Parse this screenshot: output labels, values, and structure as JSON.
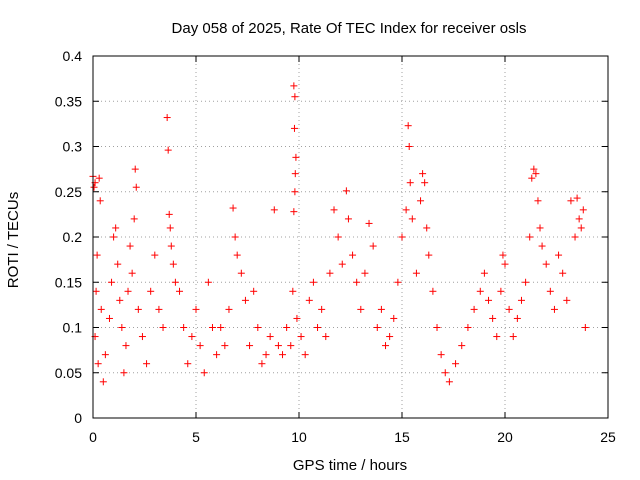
{
  "chart_data": {
    "type": "scatter",
    "title": "Day 058 of 2025, Rate Of TEC Index for receiver osls",
    "xlabel": "GPS time / hours",
    "ylabel": "ROTI / TECUs",
    "xlim": [
      0,
      25
    ],
    "ylim": [
      0,
      0.4
    ],
    "x_ticks": [
      0,
      5,
      10,
      15,
      20,
      25
    ],
    "x_tick_labels": [
      "0",
      "5",
      "10",
      "15",
      "20",
      "25"
    ],
    "y_ticks": [
      0,
      0.05,
      0.1,
      0.15,
      0.2,
      0.25,
      0.3,
      0.35,
      0.4
    ],
    "y_tick_labels": [
      "0",
      "0.05",
      "0.1",
      "0.15",
      "0.2",
      "0.25",
      "0.3",
      "0.35",
      "0.4"
    ],
    "grid": true,
    "marker": "+",
    "color": "#ff0000",
    "series": [
      {
        "name": "ROTI",
        "points": [
          [
            0.0,
            0.267
          ],
          [
            0.05,
            0.255
          ],
          [
            0.1,
            0.26
          ],
          [
            0.3,
            0.265
          ],
          [
            0.35,
            0.24
          ],
          [
            0.2,
            0.18
          ],
          [
            0.15,
            0.14
          ],
          [
            0.4,
            0.12
          ],
          [
            0.1,
            0.09
          ],
          [
            0.25,
            0.06
          ],
          [
            0.5,
            0.04
          ],
          [
            0.6,
            0.07
          ],
          [
            0.8,
            0.11
          ],
          [
            0.9,
            0.15
          ],
          [
            1.0,
            0.2
          ],
          [
            1.1,
            0.21
          ],
          [
            1.2,
            0.17
          ],
          [
            1.3,
            0.13
          ],
          [
            1.4,
            0.1
          ],
          [
            1.5,
            0.05
          ],
          [
            1.6,
            0.08
          ],
          [
            1.7,
            0.14
          ],
          [
            1.8,
            0.19
          ],
          [
            1.9,
            0.16
          ],
          [
            2.05,
            0.275
          ],
          [
            2.1,
            0.255
          ],
          [
            2.0,
            0.22
          ],
          [
            2.2,
            0.12
          ],
          [
            2.4,
            0.09
          ],
          [
            2.6,
            0.06
          ],
          [
            2.8,
            0.14
          ],
          [
            3.0,
            0.18
          ],
          [
            3.2,
            0.12
          ],
          [
            3.4,
            0.1
          ],
          [
            3.6,
            0.332
          ],
          [
            3.65,
            0.296
          ],
          [
            3.7,
            0.225
          ],
          [
            3.75,
            0.21
          ],
          [
            3.8,
            0.19
          ],
          [
            3.9,
            0.17
          ],
          [
            4.0,
            0.15
          ],
          [
            4.2,
            0.14
          ],
          [
            4.4,
            0.1
          ],
          [
            4.6,
            0.06
          ],
          [
            4.8,
            0.09
          ],
          [
            5.0,
            0.12
          ],
          [
            5.2,
            0.08
          ],
          [
            5.4,
            0.05
          ],
          [
            5.6,
            0.15
          ],
          [
            5.8,
            0.1
          ],
          [
            6.0,
            0.07
          ],
          [
            6.2,
            0.1
          ],
          [
            6.4,
            0.08
          ],
          [
            6.6,
            0.12
          ],
          [
            6.8,
            0.232
          ],
          [
            6.9,
            0.2
          ],
          [
            7.0,
            0.18
          ],
          [
            7.2,
            0.16
          ],
          [
            7.4,
            0.13
          ],
          [
            7.6,
            0.08
          ],
          [
            7.8,
            0.14
          ],
          [
            8.0,
            0.1
          ],
          [
            8.2,
            0.06
          ],
          [
            8.4,
            0.07
          ],
          [
            8.6,
            0.09
          ],
          [
            8.8,
            0.23
          ],
          [
            9.0,
            0.08
          ],
          [
            9.2,
            0.07
          ],
          [
            9.4,
            0.1
          ],
          [
            9.6,
            0.08
          ],
          [
            9.75,
            0.367
          ],
          [
            9.8,
            0.355
          ],
          [
            9.78,
            0.32
          ],
          [
            9.85,
            0.288
          ],
          [
            9.82,
            0.27
          ],
          [
            9.8,
            0.25
          ],
          [
            9.75,
            0.228
          ],
          [
            9.7,
            0.14
          ],
          [
            9.9,
            0.11
          ],
          [
            10.1,
            0.09
          ],
          [
            10.3,
            0.07
          ],
          [
            10.5,
            0.13
          ],
          [
            10.7,
            0.15
          ],
          [
            10.9,
            0.1
          ],
          [
            11.1,
            0.12
          ],
          [
            11.3,
            0.09
          ],
          [
            11.5,
            0.16
          ],
          [
            11.7,
            0.23
          ],
          [
            11.9,
            0.2
          ],
          [
            12.1,
            0.17
          ],
          [
            12.3,
            0.251
          ],
          [
            12.4,
            0.22
          ],
          [
            12.6,
            0.18
          ],
          [
            12.8,
            0.15
          ],
          [
            13.0,
            0.12
          ],
          [
            13.2,
            0.16
          ],
          [
            13.4,
            0.215
          ],
          [
            13.6,
            0.19
          ],
          [
            13.8,
            0.1
          ],
          [
            14.0,
            0.12
          ],
          [
            14.2,
            0.08
          ],
          [
            14.4,
            0.09
          ],
          [
            14.6,
            0.11
          ],
          [
            14.8,
            0.15
          ],
          [
            15.0,
            0.2
          ],
          [
            15.2,
            0.23
          ],
          [
            15.3,
            0.323
          ],
          [
            15.35,
            0.3
          ],
          [
            15.4,
            0.26
          ],
          [
            15.5,
            0.22
          ],
          [
            15.7,
            0.16
          ],
          [
            15.9,
            0.24
          ],
          [
            16.0,
            0.27
          ],
          [
            16.1,
            0.26
          ],
          [
            16.2,
            0.21
          ],
          [
            16.3,
            0.18
          ],
          [
            16.5,
            0.14
          ],
          [
            16.7,
            0.1
          ],
          [
            16.9,
            0.07
          ],
          [
            17.1,
            0.05
          ],
          [
            17.3,
            0.04
          ],
          [
            17.6,
            0.06
          ],
          [
            17.9,
            0.08
          ],
          [
            18.2,
            0.1
          ],
          [
            18.5,
            0.12
          ],
          [
            18.8,
            0.14
          ],
          [
            19.0,
            0.16
          ],
          [
            19.2,
            0.13
          ],
          [
            19.4,
            0.11
          ],
          [
            19.6,
            0.09
          ],
          [
            19.8,
            0.14
          ],
          [
            19.9,
            0.18
          ],
          [
            20.0,
            0.17
          ],
          [
            20.2,
            0.12
          ],
          [
            20.4,
            0.09
          ],
          [
            20.6,
            0.11
          ],
          [
            20.8,
            0.13
          ],
          [
            21.0,
            0.15
          ],
          [
            21.2,
            0.2
          ],
          [
            21.3,
            0.265
          ],
          [
            21.4,
            0.275
          ],
          [
            21.5,
            0.27
          ],
          [
            21.6,
            0.24
          ],
          [
            21.7,
            0.21
          ],
          [
            21.8,
            0.19
          ],
          [
            22.0,
            0.17
          ],
          [
            22.2,
            0.14
          ],
          [
            22.4,
            0.12
          ],
          [
            22.6,
            0.18
          ],
          [
            22.8,
            0.16
          ],
          [
            23.0,
            0.13
          ],
          [
            23.2,
            0.24
          ],
          [
            23.4,
            0.2
          ],
          [
            23.5,
            0.243
          ],
          [
            23.6,
            0.22
          ],
          [
            23.7,
            0.21
          ],
          [
            23.8,
            0.23
          ],
          [
            23.9,
            0.1
          ]
        ]
      }
    ]
  }
}
